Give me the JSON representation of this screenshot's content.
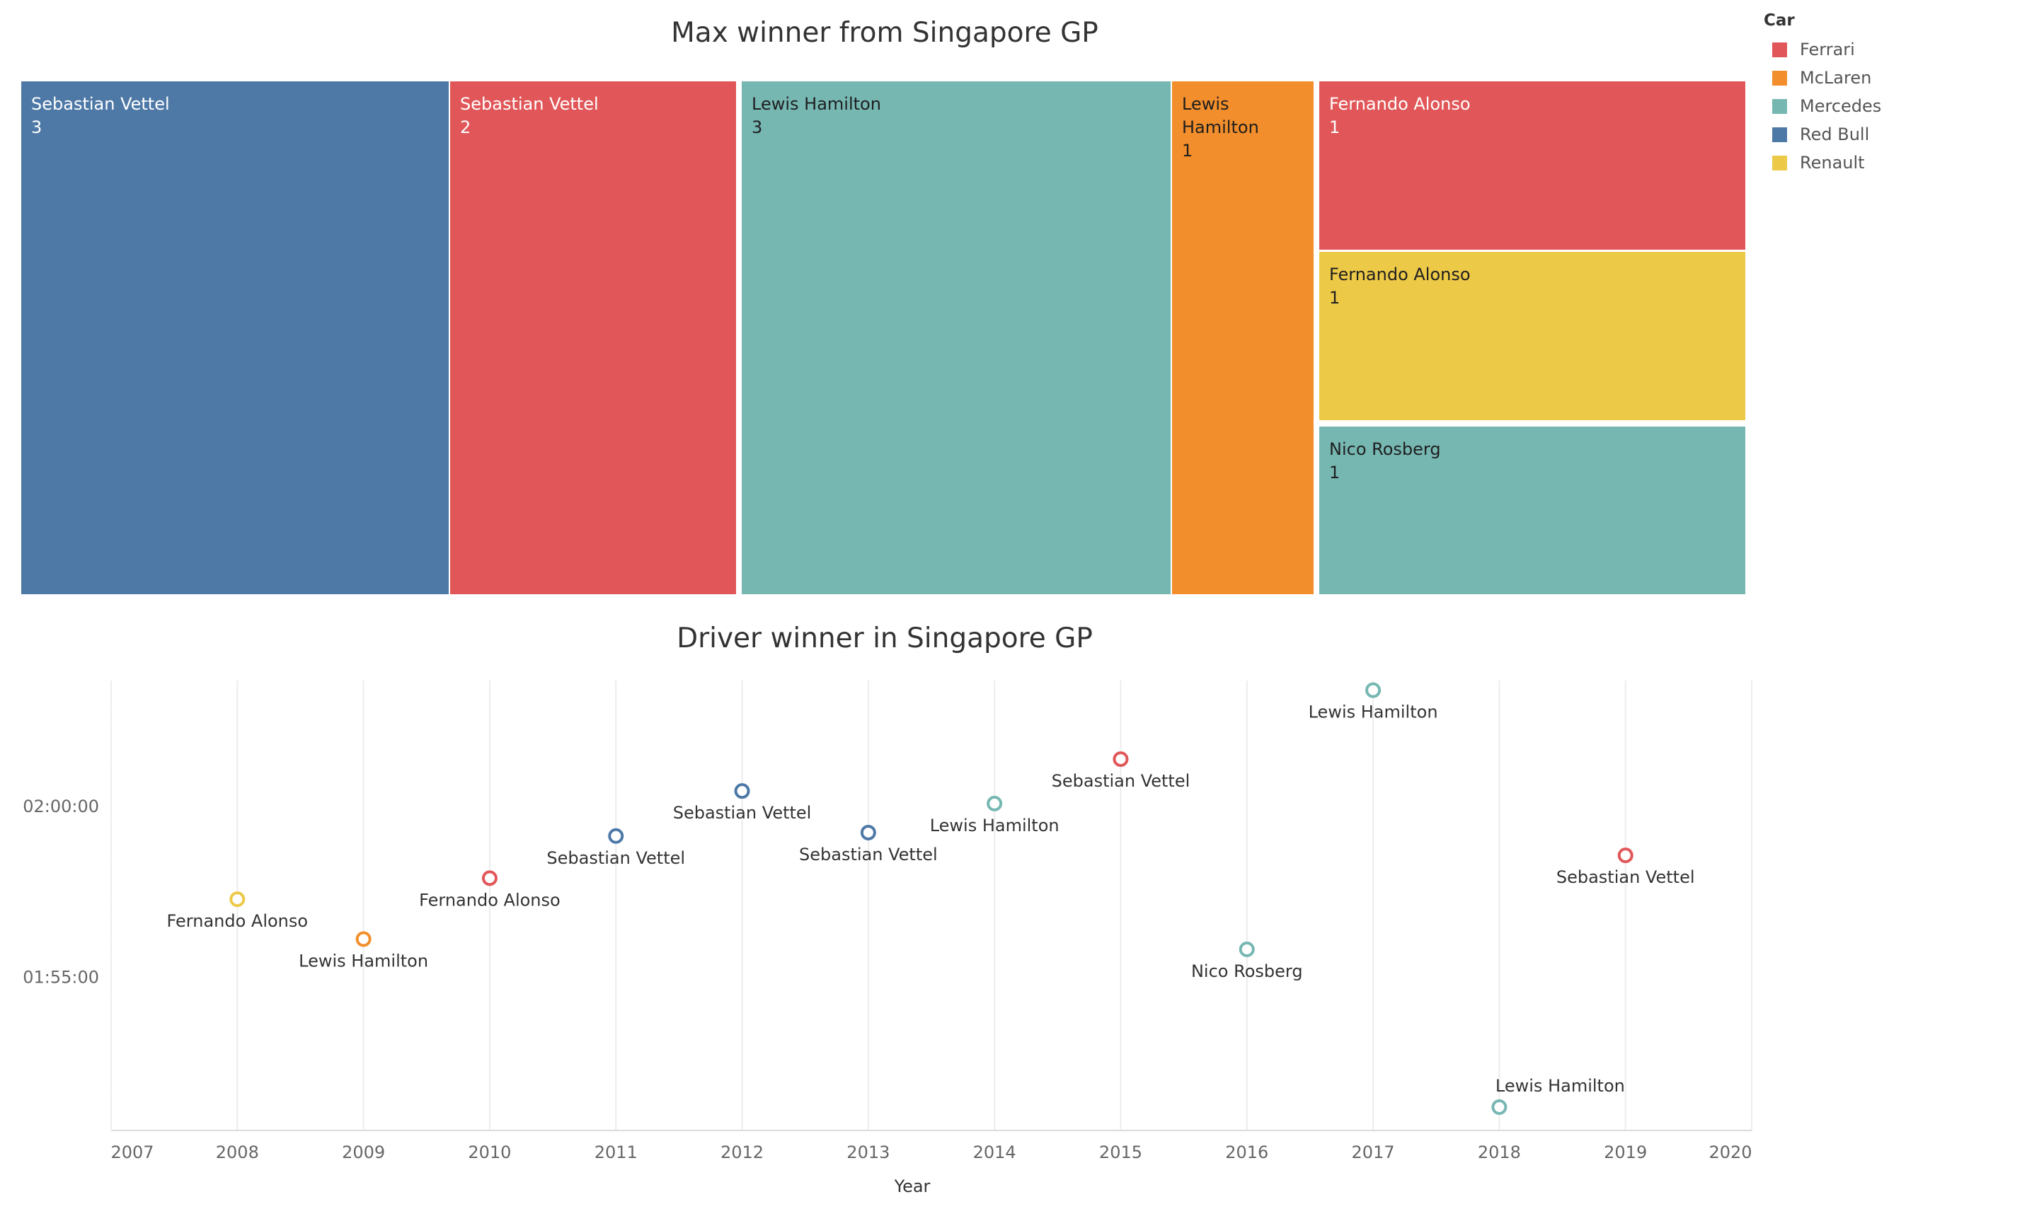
{
  "chart_data": [
    {
      "type": "treemap",
      "title": "Max winner from Singapore GP",
      "value_field": "wins",
      "items": [
        {
          "driver": "Sebastian Vettel",
          "car": "Red Bull",
          "wins": 3
        },
        {
          "driver": "Sebastian Vettel",
          "car": "Ferrari",
          "wins": 2
        },
        {
          "driver": "Lewis Hamilton",
          "car": "Mercedes",
          "wins": 3
        },
        {
          "driver": "Lewis Hamilton",
          "car": "McLaren",
          "wins": 1
        },
        {
          "driver": "Fernando Alonso",
          "car": "Ferrari",
          "wins": 1
        },
        {
          "driver": "Fernando Alonso",
          "car": "Renault",
          "wins": 1
        },
        {
          "driver": "Nico Rosberg",
          "car": "Mercedes",
          "wins": 1
        }
      ],
      "legend": {
        "title": "Car",
        "placement": "top-right",
        "entries": [
          "Ferrari",
          "McLaren",
          "Mercedes",
          "Red Bull",
          "Renault"
        ]
      }
    },
    {
      "type": "scatter",
      "title": "Driver winner in Singapore GP",
      "xlabel": "Year",
      "ylabel": "",
      "xlim": [
        2007,
        2020
      ],
      "x_ticks": [
        2007,
        2008,
        2009,
        2010,
        2011,
        2012,
        2013,
        2014,
        2015,
        2016,
        2017,
        2018,
        2019,
        2020
      ],
      "ylim": [
        "01:50:30",
        "02:03:40"
      ],
      "y_ticks": [
        "01:55:00",
        "02:00:00"
      ],
      "grid": "vertical",
      "points": [
        {
          "year": 2008,
          "time": "01:57:16",
          "driver": "Fernando Alonso",
          "car": "Renault"
        },
        {
          "year": 2009,
          "time": "01:56:06",
          "driver": "Lewis Hamilton",
          "car": "McLaren"
        },
        {
          "year": 2010,
          "time": "01:57:53",
          "driver": "Fernando Alonso",
          "car": "Ferrari"
        },
        {
          "year": 2011,
          "time": "01:59:07",
          "driver": "Sebastian Vettel",
          "car": "Red Bull"
        },
        {
          "year": 2012,
          "time": "02:00:26",
          "driver": "Sebastian Vettel",
          "car": "Red Bull"
        },
        {
          "year": 2013,
          "time": "01:59:13",
          "driver": "Sebastian Vettel",
          "car": "Red Bull"
        },
        {
          "year": 2014,
          "time": "02:00:04",
          "driver": "Lewis Hamilton",
          "car": "Mercedes"
        },
        {
          "year": 2015,
          "time": "02:01:22",
          "driver": "Sebastian Vettel",
          "car": "Ferrari"
        },
        {
          "year": 2016,
          "time": "01:55:48",
          "driver": "Nico Rosberg",
          "car": "Mercedes"
        },
        {
          "year": 2017,
          "time": "02:03:23",
          "driver": "Lewis Hamilton",
          "car": "Mercedes"
        },
        {
          "year": 2018,
          "time": "01:51:11",
          "driver": "Lewis Hamilton",
          "car": "Mercedes"
        },
        {
          "year": 2019,
          "time": "01:58:33",
          "driver": "Sebastian Vettel",
          "car": "Ferrari"
        }
      ]
    }
  ],
  "colors": {
    "Ferrari": "#e15759",
    "McLaren": "#f28e2b",
    "Mercedes": "#76b7b2",
    "Red Bull": "#4e79a7",
    "Renault": "#edc948"
  }
}
